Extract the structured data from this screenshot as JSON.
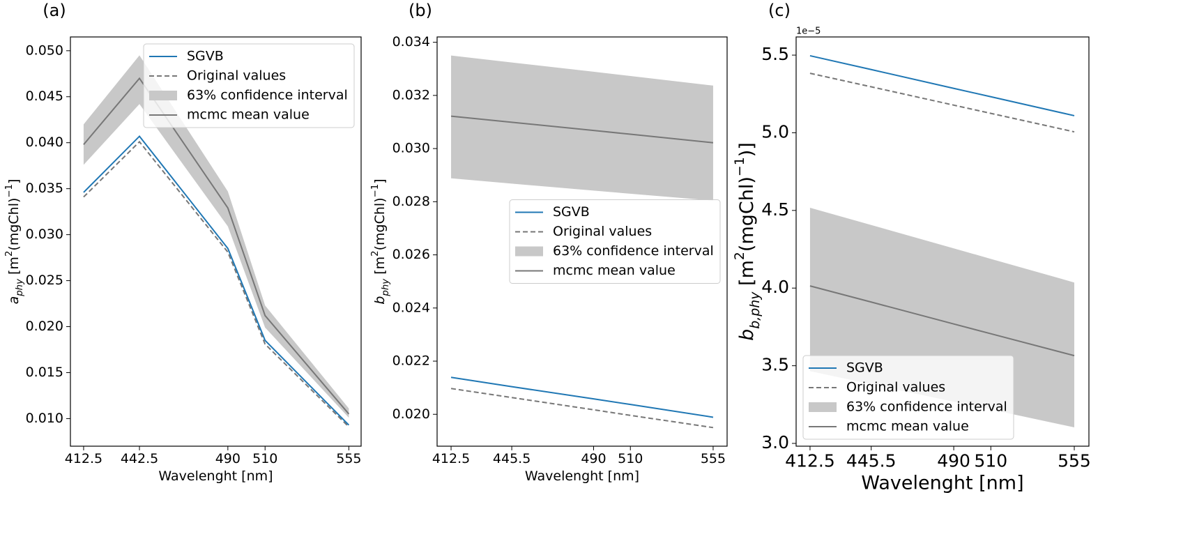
{
  "chart_data": [
    {
      "type": "line",
      "title": "(a)",
      "xlabel": "Wavelenght [nm]",
      "ylabel": [
        {
          "text": "a",
          "style": "italic"
        },
        {
          "text": "phy",
          "shift": "sub",
          "style": "italic"
        },
        {
          "text": " [m"
        },
        {
          "text": "2",
          "shift": "super"
        },
        {
          "text": "(mgChl)"
        },
        {
          "text": "−1",
          "shift": "super"
        },
        {
          "text": "]"
        }
      ],
      "x": [
        412.5,
        442.5,
        490,
        510,
        555
      ],
      "xlim": [
        405.4,
        561.6
      ],
      "xticks": [
        412.5,
        442.5,
        490,
        510,
        555
      ],
      "ylim": [
        0.007,
        0.0515
      ],
      "yticks": [
        {
          "value": 0.01,
          "label": "0.010"
        },
        0.015,
        {
          "value": 0.02,
          "label": "0.020"
        },
        0.025,
        {
          "value": 0.03,
          "label": "0.030"
        },
        0.035,
        {
          "value": 0.04,
          "label": "0.040"
        },
        0.045,
        {
          "value": 0.05,
          "label": "0.050"
        }
      ],
      "legend": "upper right",
      "series": [
        {
          "name": "SGVB",
          "color": "#1f77b4",
          "values": [
            0.0346,
            0.0407,
            0.0285,
            0.0185,
            0.0093
          ]
        },
        {
          "name": "Original values",
          "color": "#777777",
          "dashed": true,
          "values": [
            0.0341,
            0.0401,
            0.0281,
            0.0181,
            0.0091
          ]
        },
        {
          "name": "63% confidence interval",
          "color": "#c8c8c8",
          "lower": [
            0.0376,
            0.0442,
            0.0309,
            0.0199,
            0.0101
          ],
          "upper": [
            0.042,
            0.0495,
            0.0347,
            0.0223,
            0.0111
          ]
        },
        {
          "name": "mcmc mean value",
          "color": "#777777",
          "values": [
            0.0398,
            0.047,
            0.0329,
            0.0212,
            0.0105
          ]
        }
      ]
    },
    {
      "type": "line",
      "title": "(b)",
      "xlabel": "Wavelenght [nm]",
      "ylabel": [
        {
          "text": "b",
          "style": "italic"
        },
        {
          "text": "phy",
          "shift": "sub",
          "style": "italic"
        },
        {
          "text": " [m"
        },
        {
          "text": "2",
          "shift": "super"
        },
        {
          "text": "(mgChl)"
        },
        {
          "text": "−1",
          "shift": "super"
        },
        {
          "text": "]"
        }
      ],
      "x": [
        412.5,
        445.5,
        490,
        510,
        555
      ],
      "xlim": [
        404.9,
        562.6
      ],
      "xticks": [
        412.5,
        445.5,
        490,
        510,
        555
      ],
      "ylim": [
        0.0188,
        0.0342
      ],
      "yticks": [
        {
          "value": 0.02,
          "label": "0.020"
        },
        0.022,
        0.024,
        0.026,
        0.028,
        {
          "value": 0.03,
          "label": "0.030"
        },
        0.032,
        0.034
      ],
      "legend": "center right",
      "series": [
        {
          "name": "SGVB",
          "color": "#1f77b4",
          "values": [
            0.02139,
            0.02104,
            0.02058,
            0.02037,
            0.01989
          ]
        },
        {
          "name": "Original values",
          "color": "#777777",
          "dashed": true,
          "values": [
            0.02097,
            0.02063,
            0.02017,
            0.01996,
            0.0195
          ]
        },
        {
          "name": "63% confidence interval",
          "color": "#c8c8c8",
          "lower": [
            0.02888,
            0.02868,
            0.02842,
            0.0283,
            0.02804
          ],
          "upper": [
            0.0335,
            0.03324,
            0.03289,
            0.03273,
            0.03237
          ]
        },
        {
          "name": "mcmc mean value",
          "color": "#777777",
          "values": [
            0.03122,
            0.03099,
            0.03068,
            0.03054,
            0.03022
          ]
        }
      ]
    },
    {
      "type": "line",
      "title": "(c)",
      "xlabel": "Wavelenght [nm]",
      "ylabel": [
        {
          "text": "b",
          "style": "italic"
        },
        {
          "text": "b,phy",
          "shift": "sub",
          "style": "italic"
        },
        {
          "text": " [m"
        },
        {
          "text": "2",
          "shift": "super"
        },
        {
          "text": "(mgChl)"
        },
        {
          "text": "−1",
          "shift": "super"
        },
        {
          "text": ")]"
        }
      ],
      "y_offset_label": "1e−5",
      "x": [
        412.5,
        445.5,
        490,
        510,
        555
      ],
      "xlim": [
        405,
        562.9
      ],
      "xticks": [
        412.5,
        445.5,
        490,
        510,
        555
      ],
      "ylim": [
        2.982,
        5.617
      ],
      "yticks": [
        {
          "value": 3,
          "label": "3.0"
        },
        3.5,
        {
          "value": 4,
          "label": "4.0"
        },
        4.5,
        {
          "value": 5,
          "label": "5.0"
        },
        5.5
      ],
      "legend": "lower left",
      "series": [
        {
          "name": "SGVB",
          "color": "#1f77b4",
          "values": [
            5.496,
            5.407,
            5.286,
            5.232,
            5.11
          ]
        },
        {
          "name": "Original values",
          "color": "#777777",
          "dashed": true,
          "values": [
            5.383,
            5.296,
            5.178,
            5.125,
            5.006
          ]
        },
        {
          "name": "63% confidence interval",
          "color": "#c8c8c8",
          "lower": [
            3.465,
            3.381,
            3.268,
            3.218,
            3.103
          ],
          "upper": [
            4.517,
            4.406,
            4.256,
            4.188,
            4.036
          ]
        },
        {
          "name": "mcmc mean value",
          "color": "#777777",
          "values": [
            4.014,
            3.91,
            3.769,
            3.706,
            3.565
          ]
        }
      ]
    }
  ]
}
